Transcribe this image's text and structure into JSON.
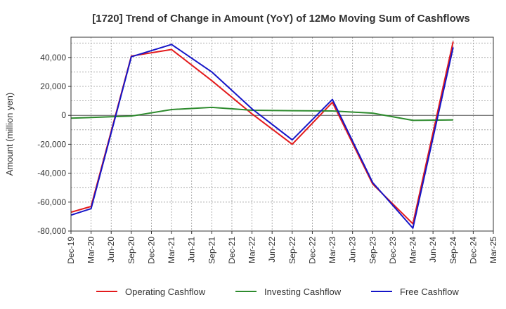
{
  "chart_data": {
    "type": "line",
    "title": "[1720]  Trend of Change in Amount (YoY) of 12Mo Moving Sum of Cashflows",
    "xlabel": "",
    "ylabel": "Amount (million yen)",
    "ylim": [
      -80000,
      54000
    ],
    "yticks": [
      40000,
      20000,
      0,
      -20000,
      -40000,
      -60000,
      -80000
    ],
    "ytick_labels": [
      "40,000",
      "20,000",
      "0",
      "-20,000",
      "-40,000",
      "-60,000",
      "-80,000"
    ],
    "categories": [
      "Dec-19",
      "Mar-20",
      "Jun-20",
      "Sep-20",
      "Dec-20",
      "Mar-21",
      "Jun-21",
      "Sep-21",
      "Dec-21",
      "Mar-22",
      "Jun-22",
      "Sep-22",
      "Dec-22",
      "Mar-23",
      "Jun-23",
      "Sep-23",
      "Dec-23",
      "Mar-24",
      "Jun-24",
      "Sep-24",
      "Dec-24",
      "Mar-25"
    ],
    "series": [
      {
        "name": "Operating Cashflow",
        "color": "#e31a1c",
        "values": [
          -67000,
          -63000,
          null,
          41000,
          null,
          45500,
          null,
          24000,
          null,
          1000,
          null,
          -20000,
          null,
          9000,
          null,
          -47500,
          null,
          -75000,
          null,
          51000,
          null,
          null
        ]
      },
      {
        "name": "Investing Cashflow",
        "color": "#2e8b2e",
        "values": [
          -2000,
          -1500,
          null,
          -500,
          null,
          4000,
          null,
          5500,
          null,
          3500,
          null,
          3200,
          null,
          3000,
          null,
          1500,
          null,
          -3500,
          null,
          -3200,
          null,
          null
        ]
      },
      {
        "name": "Free Cashflow",
        "color": "#1515c8",
        "values": [
          -69000,
          -64500,
          null,
          40500,
          null,
          49000,
          null,
          30000,
          null,
          4500,
          null,
          -17000,
          null,
          11000,
          null,
          -46500,
          null,
          -78000,
          null,
          47000,
          null,
          null
        ]
      }
    ],
    "legend": [
      "Operating Cashflow",
      "Investing Cashflow",
      "Free Cashflow"
    ],
    "legend_position": "bottom",
    "grid": true
  }
}
